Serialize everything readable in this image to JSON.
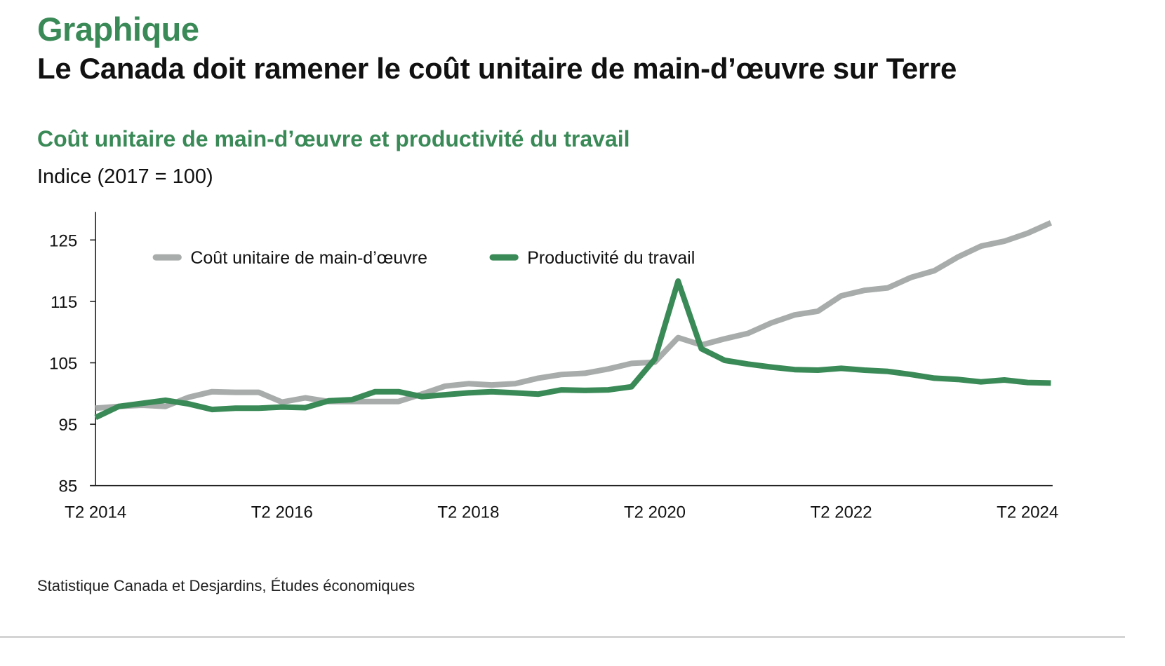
{
  "header": {
    "kicker": "Graphique",
    "title": "Le Canada doit ramener le coût unitaire de main-d’œuvre sur Terre"
  },
  "chart_header": {
    "subtitle": "Coût unitaire de main-d’œuvre et productivité du travail",
    "unit": "Indice (2017 = 100)"
  },
  "footer": {
    "source": "Statistique Canada et Desjardins, Études économiques"
  },
  "colors": {
    "labour_cost": "#a8adab",
    "productivity": "#3a8a57",
    "accent": "#3a8a57"
  },
  "chart_data": {
    "type": "line",
    "title": "Coût unitaire de main-d’œuvre et productivité du travail",
    "xlabel": "",
    "ylabel": "Indice (2017 = 100)",
    "ylim": [
      85,
      130
    ],
    "yticks": [
      85,
      95,
      105,
      115,
      125
    ],
    "xtick_labels": [
      "T2 2014",
      "T2 2016",
      "T2 2018",
      "T2 2020",
      "T2 2022",
      "T2 2024"
    ],
    "xtick_indices": [
      0,
      8,
      16,
      24,
      32,
      40
    ],
    "grid": false,
    "legend_position": "top-left",
    "x": [
      "T2 2014",
      "T3 2014",
      "T4 2014",
      "T1 2015",
      "T2 2015",
      "T3 2015",
      "T4 2015",
      "T1 2016",
      "T2 2016",
      "T3 2016",
      "T4 2016",
      "T1 2017",
      "T2 2017",
      "T3 2017",
      "T4 2017",
      "T1 2018",
      "T2 2018",
      "T3 2018",
      "T4 2018",
      "T1 2019",
      "T2 2019",
      "T3 2019",
      "T4 2019",
      "T1 2020",
      "T2 2020",
      "T3 2020",
      "T4 2020",
      "T1 2021",
      "T2 2021",
      "T3 2021",
      "T4 2021",
      "T1 2022",
      "T2 2022",
      "T3 2022",
      "T4 2022",
      "T1 2023",
      "T2 2023",
      "T3 2023",
      "T4 2023",
      "T1 2024",
      "T2 2024",
      "T3 2024"
    ],
    "series": [
      {
        "name": "Coût unitaire de main-d’œuvre",
        "color": "#a8adab",
        "values": [
          97.6,
          97.9,
          98.1,
          97.9,
          99.4,
          100.3,
          100.2,
          100.2,
          98.6,
          99.3,
          98.7,
          98.7,
          98.7,
          98.7,
          99.9,
          101.2,
          101.6,
          101.4,
          101.6,
          102.5,
          103.1,
          103.3,
          104.0,
          104.9,
          105.1,
          109.1,
          107.9,
          108.9,
          109.8,
          111.5,
          112.8,
          113.4,
          115.9,
          116.8,
          117.2,
          118.9,
          120.0,
          122.2,
          124.0,
          124.8,
          126.1,
          127.8
        ]
      },
      {
        "name": "Productivité du travail",
        "color": "#3a8a57",
        "values": [
          96.1,
          97.9,
          98.4,
          98.9,
          98.3,
          97.4,
          97.6,
          97.6,
          97.8,
          97.7,
          98.8,
          99.0,
          100.3,
          100.3,
          99.5,
          99.8,
          100.1,
          100.3,
          100.1,
          99.9,
          100.6,
          100.5,
          100.6,
          101.1,
          105.6,
          118.3,
          107.3,
          105.4,
          104.8,
          104.3,
          103.9,
          103.8,
          104.1,
          103.8,
          103.6,
          103.1,
          102.5,
          102.3,
          101.9,
          102.2,
          101.8,
          101.7
        ]
      }
    ]
  }
}
